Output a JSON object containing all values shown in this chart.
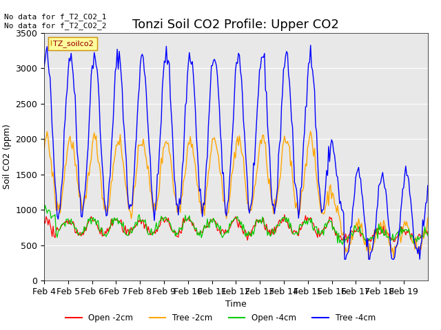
{
  "title": "Tonzi Soil CO2 Profile: Upper CO2",
  "ylabel": "Soil CO2 (ppm)",
  "xlabel": "Time",
  "ylim": [
    0,
    3500
  ],
  "xlim_labels": [
    "Feb 4",
    "Feb 5",
    "Feb 6",
    "Feb 7",
    "Feb 8",
    "Feb 9",
    "Feb 10",
    "Feb 11",
    "Feb 12",
    "Feb 13",
    "Feb 14",
    "Feb 15",
    "Feb 16",
    "Feb 17",
    "Feb 18",
    "Feb 19"
  ],
  "annotation_text": "No data for f_T2_CO2_1\nNo data for f_T2_CO2_2",
  "legend_box_label": "TZ_soilco2",
  "legend_entries": [
    "Open -2cm",
    "Tree -2cm",
    "Open -4cm",
    "Tree -4cm"
  ],
  "legend_colors": [
    "#ff0000",
    "#ffa500",
    "#00cc00",
    "#0000ff"
  ],
  "bg_color": "#e8e8e8",
  "title_fontsize": 13,
  "axis_fontsize": 9
}
